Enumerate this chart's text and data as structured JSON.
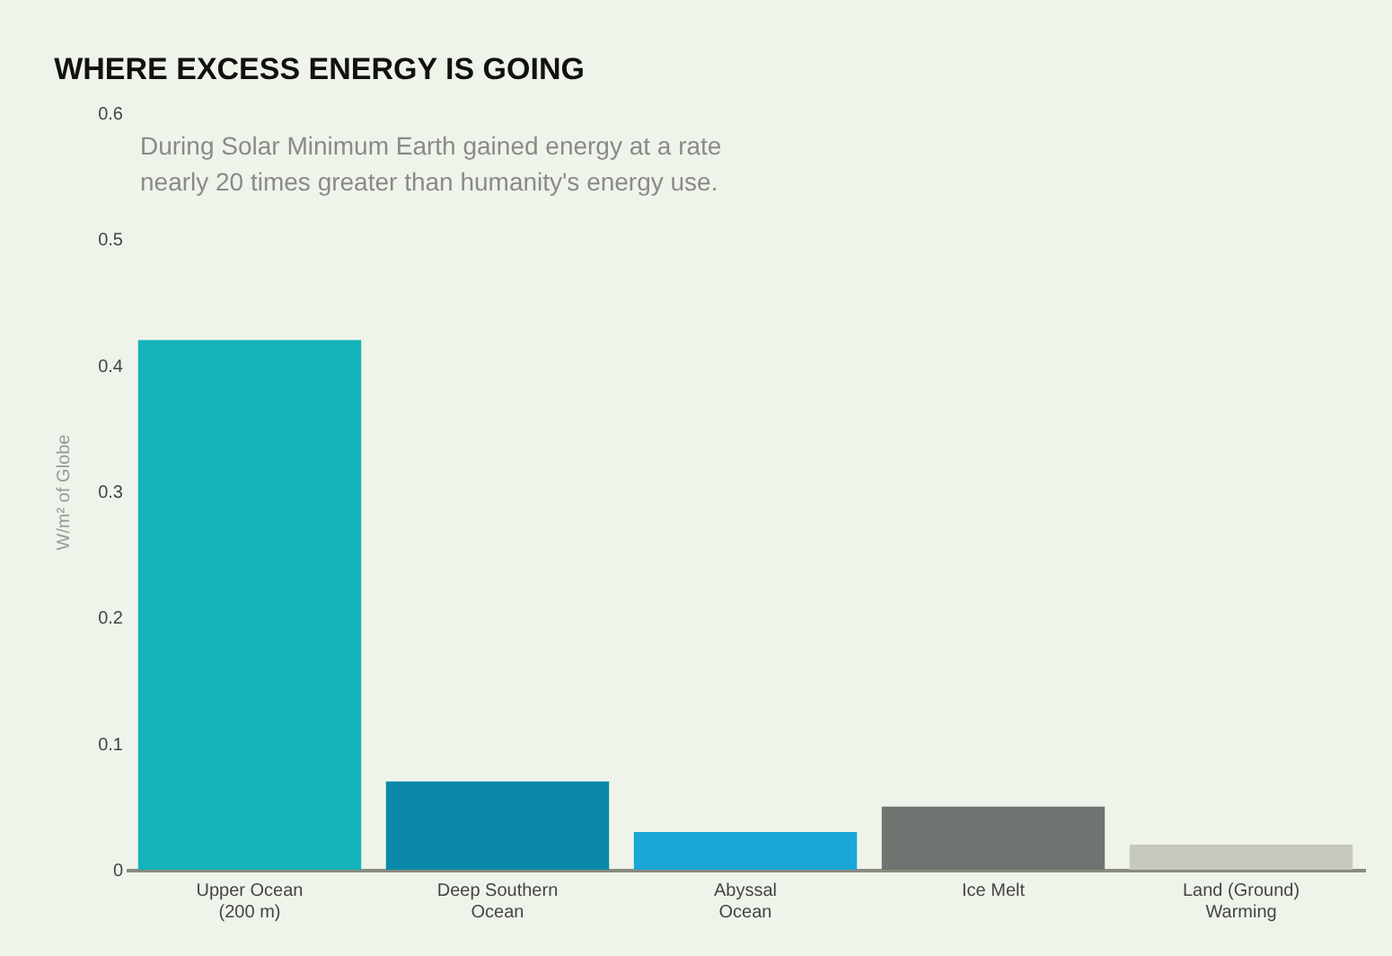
{
  "chart_data": {
    "type": "bar",
    "title": "WHERE EXCESS ENERGY IS GOING",
    "ylabel": "W/m² of Globe",
    "annotations": [
      "During Solar Minimum Earth gained energy at a rate\nnearly 20 times greater than humanity's energy use."
    ],
    "categories": [
      "Upper Ocean\n(200 m)",
      "Deep Southern\nOcean",
      "Abyssal\nOcean",
      "Ice Melt",
      "Land (Ground)\nWarming"
    ],
    "values": [
      0.42,
      0.07,
      0.03,
      0.05,
      0.02
    ],
    "colors": [
      "#12b3bb",
      "#0a88aa",
      "#1aa6d6",
      "#6f7470",
      "#c8c9bd"
    ],
    "ylim": [
      0,
      0.6
    ],
    "yticks": [
      0,
      0.1,
      0.2,
      0.3,
      0.4,
      0.5,
      0.6
    ],
    "grid": false
  }
}
